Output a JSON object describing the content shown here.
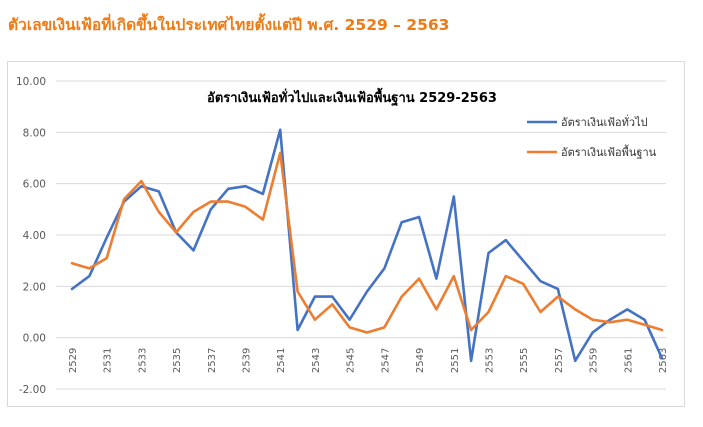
{
  "heading": "ตัวเลขเงินเฟ้อที่เกิดขึ้นในประเทศไทยตั้งแต่ปี พ.ศ. 2529 – 2563",
  "colors": {
    "heading": "#f07a13",
    "headline_series": "#4472c4",
    "core_series": "#ed7d31",
    "grid": "#d9d9d9"
  },
  "chart_data": {
    "type": "line",
    "title": "อัตราเงินเฟ้อทั่วไปและเงินเฟ้อพื้นฐาน 2529-2563",
    "x": [
      2529,
      2530,
      2531,
      2532,
      2533,
      2534,
      2535,
      2536,
      2537,
      2538,
      2539,
      2540,
      2541,
      2542,
      2543,
      2544,
      2545,
      2546,
      2547,
      2548,
      2549,
      2550,
      2551,
      2552,
      2553,
      2554,
      2555,
      2556,
      2557,
      2558,
      2559,
      2560,
      2561,
      2562,
      2563
    ],
    "x_tick_labels": [
      "2529",
      "2531",
      "2533",
      "2535",
      "2537",
      "2539",
      "2541",
      "2543",
      "2545",
      "2547",
      "2549",
      "2551",
      "2553",
      "2555",
      "2557",
      "2559",
      "2561",
      "2563"
    ],
    "ylim": [
      -2,
      10
    ],
    "y_tick_labels": [
      "10.00",
      "8.00",
      "6.00",
      "4.00",
      "2.00",
      "0.00",
      "-2.00"
    ],
    "grid": "horizontal",
    "legend_position": "top-right",
    "series": [
      {
        "name": "อัตราเงินเฟ้อทั่วไป",
        "color": "#4472c4",
        "values": [
          1.9,
          2.4,
          3.9,
          5.3,
          5.9,
          5.7,
          4.1,
          3.4,
          5.0,
          5.8,
          5.9,
          5.6,
          8.1,
          0.3,
          1.6,
          1.6,
          0.7,
          1.8,
          2.7,
          4.5,
          4.7,
          2.3,
          5.5,
          -0.9,
          3.3,
          3.8,
          3.0,
          2.2,
          1.9,
          -0.9,
          0.2,
          0.7,
          1.1,
          0.7,
          -0.8
        ]
      },
      {
        "name": "อัตราเงินเฟ้อพื้นฐาน",
        "color": "#ed7d31",
        "values": [
          2.9,
          2.7,
          3.1,
          5.4,
          6.1,
          4.9,
          4.1,
          4.9,
          5.3,
          5.3,
          5.1,
          4.6,
          7.2,
          1.8,
          0.7,
          1.3,
          0.4,
          0.2,
          0.4,
          1.6,
          2.3,
          1.1,
          2.4,
          0.3,
          1.0,
          2.4,
          2.1,
          1.0,
          1.6,
          1.1,
          0.7,
          0.6,
          0.7,
          0.5,
          0.3
        ]
      }
    ]
  }
}
